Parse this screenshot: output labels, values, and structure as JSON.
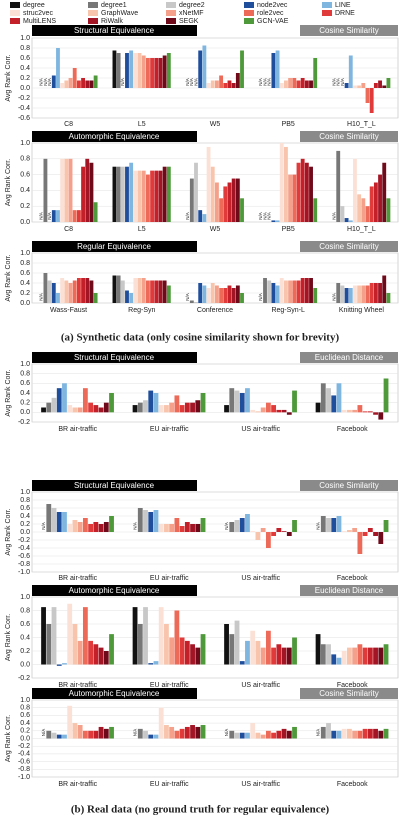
{
  "legend": [
    {
      "name": "degree",
      "color": "#111111"
    },
    {
      "name": "degree1",
      "color": "#777777"
    },
    {
      "name": "degree2",
      "color": "#c8c8c8"
    },
    {
      "name": "node2vec",
      "color": "#1f4e9c"
    },
    {
      "name": "LINE",
      "color": "#7fb6e0"
    },
    {
      "name": "struc2vec",
      "color": "#fbe0d6"
    },
    {
      "name": "GraphWave",
      "color": "#f8c4ac"
    },
    {
      "name": "xNetMF",
      "color": "#f4a08a"
    },
    {
      "name": "role2vec",
      "color": "#ee6a58"
    },
    {
      "name": "DRNE",
      "color": "#e03a3a"
    },
    {
      "name": "MultiLENS",
      "color": "#c4202a"
    },
    {
      "name": "RiWalk",
      "color": "#a31525"
    },
    {
      "name": "SEGK",
      "color": "#6e0a1a"
    },
    {
      "name": "GCN-VAE",
      "color": "#4e9a3a"
    }
  ],
  "missing_label": "N/A",
  "captions": [
    "(a) Synthetic data (only cosine similarity shown for brevity)",
    "(b) Real data (no ground truth for regular equivalence)"
  ],
  "chart_data": [
    {
      "type": "bar",
      "title": "Structural Equivalence",
      "subtitle": "Cosine Similarity",
      "ylabel": "Avg Rank Corr.",
      "categories": [
        "C8",
        "L5",
        "W5",
        "PB5",
        "H10_T_L"
      ],
      "ylim": [
        -0.6,
        1.0
      ],
      "yticks": [
        {
          "value": 1.0,
          "label": "1.0"
        },
        0.8,
        0.6,
        0.4,
        0.2,
        {
          "value": 0,
          "label": "0.0"
        },
        -0.2,
        -0.4,
        -0.6
      ],
      "values": [
        [
          null,
          null,
          null,
          0.25,
          0.8,
          0.1,
          0.15,
          0.2,
          0.4,
          0.15,
          0.2,
          0.15,
          0.15,
          0.25
        ],
        [
          0.75,
          0.7,
          null,
          0.7,
          0.75,
          0.7,
          0.7,
          0.65,
          0.6,
          0.6,
          0.6,
          0.6,
          0.65,
          0.7
        ],
        [
          null,
          null,
          null,
          0.75,
          0.85,
          0.1,
          0.15,
          0.15,
          0.25,
          0.1,
          0.15,
          0.1,
          0.3,
          0.75
        ],
        [
          null,
          null,
          null,
          0.7,
          0.75,
          0.1,
          0.15,
          0.2,
          0.2,
          0.15,
          0.2,
          0.15,
          0.15,
          0.6
        ],
        [
          null,
          null,
          null,
          0.1,
          0.65,
          0.05,
          0.05,
          0.1,
          -0.3,
          -0.5,
          0.1,
          0.15,
          0.05,
          0.2
        ]
      ]
    },
    {
      "type": "bar",
      "title": "Automorphic Equivalence",
      "subtitle": "Cosine Similarity",
      "ylabel": "Avg Rank Corr.",
      "categories": [
        "C8",
        "L5",
        "W5",
        "PB5",
        "H10_T_L"
      ],
      "ylim": [
        0,
        1.0
      ],
      "yticks": [
        {
          "value": 1.0,
          "label": "1.0"
        },
        0.8,
        0.6,
        0.4,
        0.2,
        {
          "value": 0,
          "label": "0.0"
        }
      ],
      "values": [
        [
          null,
          0.8,
          null,
          0.15,
          0.15,
          0.8,
          0.8,
          0.8,
          0.15,
          0.15,
          0.7,
          0.8,
          0.75,
          0.25
        ],
        [
          0.7,
          0.7,
          0.7,
          0.7,
          0.75,
          0.65,
          0.65,
          0.65,
          0.6,
          0.65,
          0.65,
          0.65,
          0.7,
          0.7
        ],
        [
          null,
          0.55,
          0.75,
          0.15,
          0.1,
          0.95,
          0.7,
          0.5,
          0.3,
          0.45,
          0.5,
          0.55,
          0.55,
          0.3
        ],
        [
          null,
          null,
          null,
          0.02,
          0.02,
          1.0,
          0.95,
          0.6,
          0.6,
          0.75,
          0.8,
          0.75,
          0.7,
          0.3
        ],
        [
          null,
          0.9,
          0.2,
          0.05,
          0.02,
          0.8,
          0.35,
          0.3,
          0.2,
          0.45,
          0.5,
          0.6,
          0.75,
          0.3
        ]
      ]
    },
    {
      "type": "bar",
      "title": "Regular Equivalence",
      "subtitle": "Cosine Similarity",
      "ylabel": "Avg Rank Corr.",
      "categories": [
        "Wass-Faust",
        "Reg-Syn",
        "Conference",
        "Reg-Syn-L",
        "Knitting Wheel"
      ],
      "ylim": [
        0,
        1.0
      ],
      "yticks": [
        {
          "value": 1.0,
          "label": "1.0"
        },
        0.8,
        0.6,
        0.4,
        0.2,
        {
          "value": 0,
          "label": "0.0"
        }
      ],
      "values": [
        [
          null,
          0.6,
          0.45,
          0.4,
          0.2,
          0.5,
          0.45,
          0.4,
          0.45,
          0.5,
          0.5,
          0.5,
          0.45,
          0.2
        ],
        [
          0.55,
          0.55,
          0.45,
          0.25,
          0.2,
          0.5,
          0.5,
          0.5,
          0.45,
          0.45,
          0.45,
          0.45,
          0.45,
          0.35
        ],
        [
          null,
          0.05,
          0.02,
          0.4,
          0.35,
          0.3,
          0.4,
          0.35,
          0.3,
          0.3,
          0.35,
          0.3,
          0.35,
          0.2
        ],
        [
          null,
          0.5,
          0.45,
          0.4,
          0.35,
          0.5,
          0.45,
          0.45,
          0.45,
          0.45,
          0.5,
          0.5,
          0.5,
          0.3
        ],
        [
          null,
          0.4,
          0.35,
          0.3,
          0.3,
          0.35,
          0.35,
          0.35,
          0.35,
          0.4,
          0.4,
          0.4,
          0.55,
          0.2
        ]
      ]
    },
    {
      "type": "bar",
      "title": "Structural Equivalence",
      "subtitle": "Euclidean Distance",
      "ylabel": "Avg Rank Corr.",
      "categories": [
        "BR air-traffic",
        "EU air-traffic",
        "US air-traffic",
        "Facebook"
      ],
      "ylim": [
        -0.2,
        1.0
      ],
      "yticks": [
        {
          "value": 1.0,
          "label": "1.0"
        },
        0.8,
        0.6,
        0.4,
        0.2,
        {
          "value": 0,
          "label": "0.0"
        },
        -0.2
      ],
      "values": [
        [
          0.1,
          0.2,
          0.3,
          0.5,
          0.6,
          0.15,
          0.1,
          0.1,
          0.5,
          0.2,
          0.15,
          0.1,
          0.2,
          0.4
        ],
        [
          0.15,
          0.2,
          0.25,
          0.45,
          0.4,
          0.15,
          0.15,
          0.2,
          0.35,
          0.15,
          0.2,
          0.2,
          0.25,
          0.4
        ],
        [
          0.15,
          0.5,
          0.45,
          0.4,
          0.5,
          0.05,
          0.02,
          0.1,
          0.2,
          0.15,
          0.05,
          0.05,
          -0.05,
          0.45
        ],
        [
          0.2,
          0.6,
          0.5,
          0.35,
          0.6,
          0.05,
          0.05,
          0.05,
          0.15,
          0.02,
          0.02,
          -0.05,
          -0.15,
          0.7
        ]
      ]
    },
    {
      "type": "bar",
      "title": "Structural Equivalence",
      "subtitle": "Cosine Similarity",
      "ylabel": "Avg Rank Corr.",
      "categories": [
        "BR air-traffic",
        "EU air-traffic",
        "US air-traffic",
        "Facebook"
      ],
      "ylim": [
        -1.0,
        1.0
      ],
      "yticks": [
        {
          "value": 1.0,
          "label": "1.0"
        },
        0.8,
        0.6,
        0.4,
        0.2,
        {
          "value": 0,
          "label": "0.0"
        },
        -0.2,
        -0.4,
        -0.6,
        -0.8,
        {
          "value": -1.0,
          "label": "-1.0"
        }
      ],
      "values": [
        [
          null,
          0.7,
          0.6,
          0.5,
          0.5,
          0.2,
          0.3,
          0.25,
          0.35,
          0.2,
          0.25,
          0.2,
          0.25,
          0.4
        ],
        [
          null,
          0.6,
          0.55,
          0.5,
          0.55,
          0.2,
          0.2,
          0.2,
          0.35,
          0.15,
          0.25,
          0.2,
          0.2,
          0.35
        ],
        [
          null,
          0.25,
          0.3,
          0.35,
          0.45,
          0.02,
          -0.2,
          0.1,
          -0.4,
          -0.1,
          0.1,
          0.02,
          -0.1,
          0.3
        ],
        [
          null,
          0.4,
          0.35,
          0.35,
          0.4,
          0.02,
          0.05,
          0.1,
          -0.55,
          -0.1,
          0.1,
          -0.1,
          -0.3,
          0.3
        ]
      ]
    },
    {
      "type": "bar",
      "title": "Automorphic Equivalence",
      "subtitle": "Euclidean Distance",
      "ylabel": "Avg Rank Corr.",
      "categories": [
        "BR air-traffic",
        "EU air-traffic",
        "US air-traffic",
        "Facebook"
      ],
      "ylim": [
        -0.2,
        1.0
      ],
      "yticks": [
        {
          "value": 1.0,
          "label": "1.0"
        },
        0.8,
        0.6,
        0.4,
        0.2,
        {
          "value": 0,
          "label": "0.0"
        },
        -0.2
      ],
      "values": [
        [
          0.85,
          0.6,
          0.85,
          -0.02,
          0.02,
          0.9,
          0.6,
          0.35,
          0.85,
          0.35,
          0.3,
          0.25,
          0.2,
          0.45
        ],
        [
          0.85,
          0.6,
          0.85,
          0.02,
          0.05,
          0.85,
          0.6,
          0.4,
          0.8,
          0.4,
          0.35,
          0.3,
          0.25,
          0.45
        ],
        [
          0.6,
          0.45,
          0.65,
          0.05,
          0.35,
          0.5,
          0.35,
          0.25,
          0.5,
          0.25,
          0.3,
          0.25,
          0.25,
          0.4
        ],
        [
          0.45,
          0.3,
          0.3,
          0.15,
          0.1,
          0.2,
          0.25,
          0.25,
          0.3,
          0.25,
          0.25,
          0.25,
          0.25,
          0.3
        ]
      ]
    },
    {
      "type": "bar",
      "title": "Automorphic Equivalence",
      "subtitle": "Cosine Similarity",
      "ylabel": "Avg Rank Corr.",
      "categories": [
        "BR air-traffic",
        "EU air-traffic",
        "US air-traffic",
        "Facebook"
      ],
      "ylim": [
        -1.0,
        1.0
      ],
      "yticks": [
        {
          "value": 1.0,
          "label": "1.0"
        },
        0.8,
        0.6,
        0.4,
        0.2,
        {
          "value": 0,
          "label": "0.0"
        },
        -0.2,
        -0.4,
        -0.6,
        -0.8,
        {
          "value": -1.0,
          "label": "-1.0"
        }
      ],
      "values": [
        [
          null,
          0.2,
          0.15,
          0.1,
          0.1,
          0.85,
          0.4,
          0.35,
          0.2,
          0.2,
          0.2,
          0.3,
          0.25,
          0.3
        ],
        [
          null,
          0.25,
          0.2,
          0.1,
          0.1,
          0.8,
          0.35,
          0.3,
          0.2,
          0.25,
          0.3,
          0.35,
          0.3,
          0.35
        ],
        [
          null,
          0.2,
          0.15,
          0.15,
          0.15,
          0.4,
          0.15,
          0.1,
          0.2,
          0.15,
          0.2,
          0.25,
          0.2,
          0.3
        ],
        [
          null,
          0.3,
          0.4,
          0.2,
          0.2,
          0.25,
          0.25,
          0.2,
          0.2,
          0.25,
          0.25,
          0.25,
          0.2,
          0.25
        ]
      ]
    }
  ]
}
